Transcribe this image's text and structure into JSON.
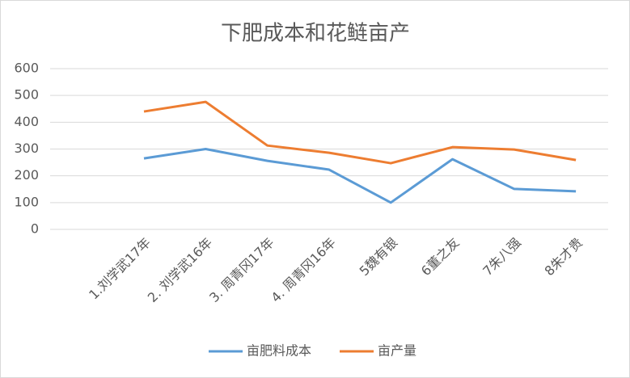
{
  "chart_data": {
    "type": "line",
    "title": "下肥成本和花鲢亩产",
    "categories": [
      "1.刘学武17年",
      "2. 刘学武16年",
      "3. 周青冈17年",
      "4. 周青冈16年",
      "5魏有银",
      "6董之友",
      "7朱八强",
      "8朱才贵"
    ],
    "series": [
      {
        "name": "亩肥料成本",
        "color": "#5b9bd5",
        "values": [
          265,
          300,
          256,
          223,
          100,
          262,
          151,
          142
        ]
      },
      {
        "name": "亩产量",
        "color": "#ed7d31",
        "values": [
          440,
          476,
          313,
          286,
          247,
          307,
          298,
          259
        ]
      }
    ],
    "ylim": [
      0,
      600
    ],
    "yticks": [
      0,
      100,
      200,
      300,
      400,
      500,
      600
    ],
    "grid": true,
    "legend": "bottom"
  }
}
